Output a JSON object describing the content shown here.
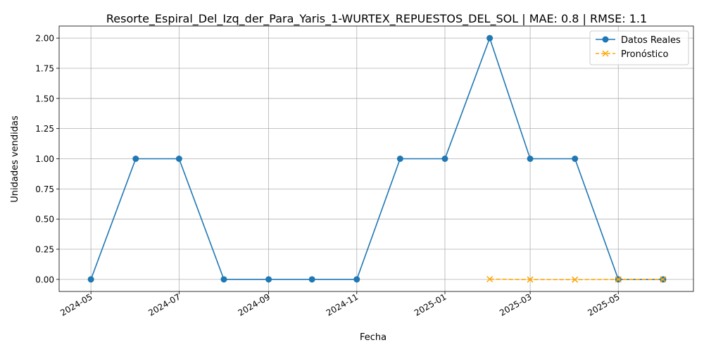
{
  "chart_data": {
    "type": "line",
    "title": "Resorte_Espiral_Del_Izq_der_Para_Yaris_1-WURTEX_REPUESTOS_DEL_SOL | MAE: 0.8 | RMSE: 1.1",
    "xlabel": "Fecha",
    "ylabel": "Unidades vendidas",
    "x_ticks": [
      "2024-05",
      "2024-07",
      "2024-09",
      "2024-11",
      "2025-01",
      "2025-03",
      "2025-05"
    ],
    "y_ticks": [
      "0.00",
      "0.25",
      "0.50",
      "0.75",
      "1.00",
      "1.25",
      "1.50",
      "1.75",
      "2.00"
    ],
    "xlim": [
      "2024-04-09",
      "2025-06-22"
    ],
    "ylim": [
      -0.1,
      2.1
    ],
    "grid": true,
    "legend_position": "top-right",
    "series": [
      {
        "name": "Datos Reales",
        "color": "#1f77b4",
        "marker": "circle",
        "linestyle": "solid",
        "x": [
          "2024-05-01",
          "2024-06-01",
          "2024-07-01",
          "2024-08-01",
          "2024-09-01",
          "2024-10-01",
          "2024-11-01",
          "2024-12-01",
          "2025-01-01",
          "2025-02-01",
          "2025-03-01",
          "2025-04-01",
          "2025-05-01",
          "2025-06-01"
        ],
        "y": [
          0,
          1,
          1,
          0,
          0,
          0,
          0,
          1,
          1,
          2,
          1,
          1,
          0,
          0
        ]
      },
      {
        "name": "Pronóstico",
        "color": "#ffa500",
        "marker": "x",
        "linestyle": "dashed",
        "x": [
          "2025-02-01",
          "2025-03-01",
          "2025-04-01",
          "2025-05-01",
          "2025-06-01"
        ],
        "y": [
          0.002,
          -0.001,
          -0.002,
          0.0,
          0.0
        ]
      }
    ]
  }
}
